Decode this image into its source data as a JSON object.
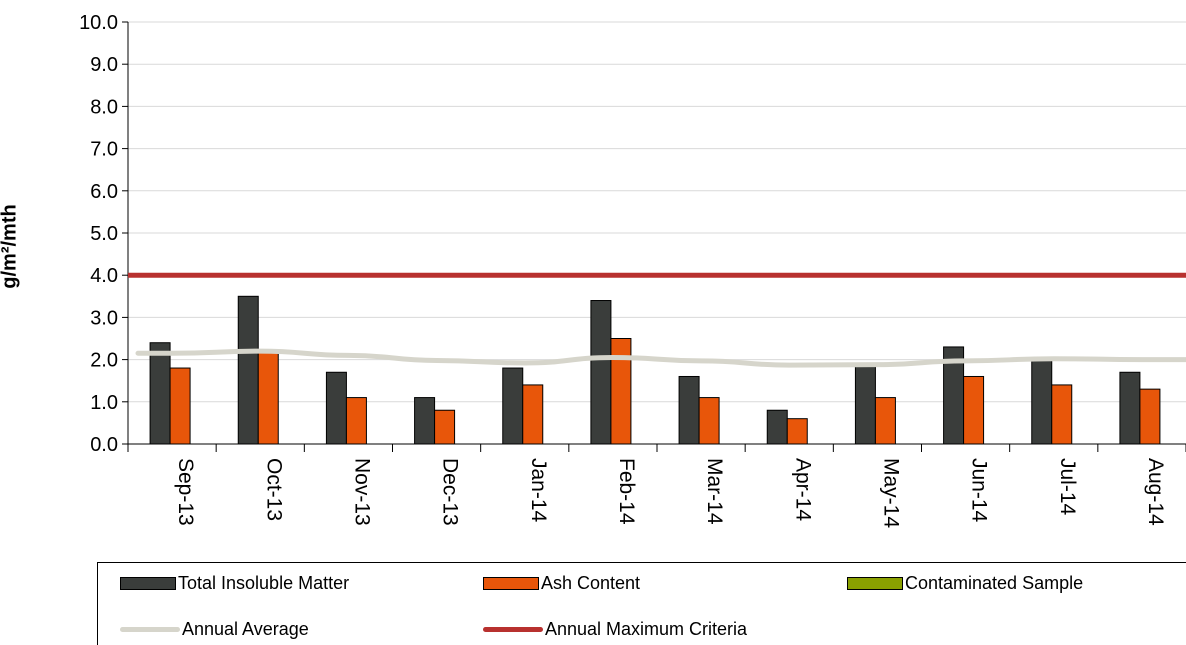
{
  "chart_data": {
    "type": "bar",
    "title": "",
    "xlabel": "",
    "ylabel": "g/m²/mth",
    "ylim": [
      0,
      10
    ],
    "yticks": [
      "0.0",
      "1.0",
      "2.0",
      "3.0",
      "4.0",
      "5.0",
      "6.0",
      "7.0",
      "8.0",
      "9.0",
      "10.0"
    ],
    "categories": [
      "Sep-13",
      "Oct-13",
      "Nov-13",
      "Dec-13",
      "Jan-14",
      "Feb-14",
      "Mar-14",
      "Apr-14",
      "May-14",
      "Jun-14",
      "Jul-14",
      "Aug-14"
    ],
    "series": [
      {
        "name": "Total Insoluble Matter",
        "type": "bar",
        "color": "#3a3d3b",
        "values": [
          2.4,
          3.5,
          1.7,
          1.1,
          1.8,
          3.4,
          1.6,
          0.8,
          1.9,
          2.3,
          2.0,
          1.7
        ]
      },
      {
        "name": "Ash Content",
        "type": "bar",
        "color": "#e8560a",
        "values": [
          1.8,
          2.2,
          1.1,
          0.8,
          1.4,
          2.5,
          1.1,
          0.6,
          1.1,
          1.6,
          1.4,
          1.3
        ]
      },
      {
        "name": "Contaminated Sample",
        "type": "bar",
        "color": "#8aa000",
        "values": [
          0,
          0,
          0,
          0,
          0,
          0,
          0,
          0,
          0,
          0,
          0,
          0
        ]
      },
      {
        "name": "Annual Average",
        "type": "line",
        "color": "#d6d5cb",
        "values": [
          2.15,
          2.2,
          2.1,
          1.98,
          1.92,
          2.05,
          1.97,
          1.87,
          1.88,
          1.97,
          2.02,
          2.0
        ]
      },
      {
        "name": "Annual Maximum Criteria",
        "type": "line",
        "color": "#b8312f",
        "values": [
          4.0,
          4.0,
          4.0,
          4.0,
          4.0,
          4.0,
          4.0,
          4.0,
          4.0,
          4.0,
          4.0,
          4.0
        ]
      }
    ],
    "grid": true,
    "legend_position": "bottom"
  },
  "legend": [
    {
      "label": "Total Insoluble Matter",
      "kind": "bar",
      "color": "#3a3d3b"
    },
    {
      "label": "Ash Content",
      "kind": "bar",
      "color": "#e8560a"
    },
    {
      "label": "Contaminated Sample",
      "kind": "bar",
      "color": "#8aa000"
    },
    {
      "label": "Annual Average",
      "kind": "line",
      "color": "#d6d5cb"
    },
    {
      "label": "Annual Maximum Criteria",
      "kind": "line",
      "color": "#b8312f"
    }
  ]
}
